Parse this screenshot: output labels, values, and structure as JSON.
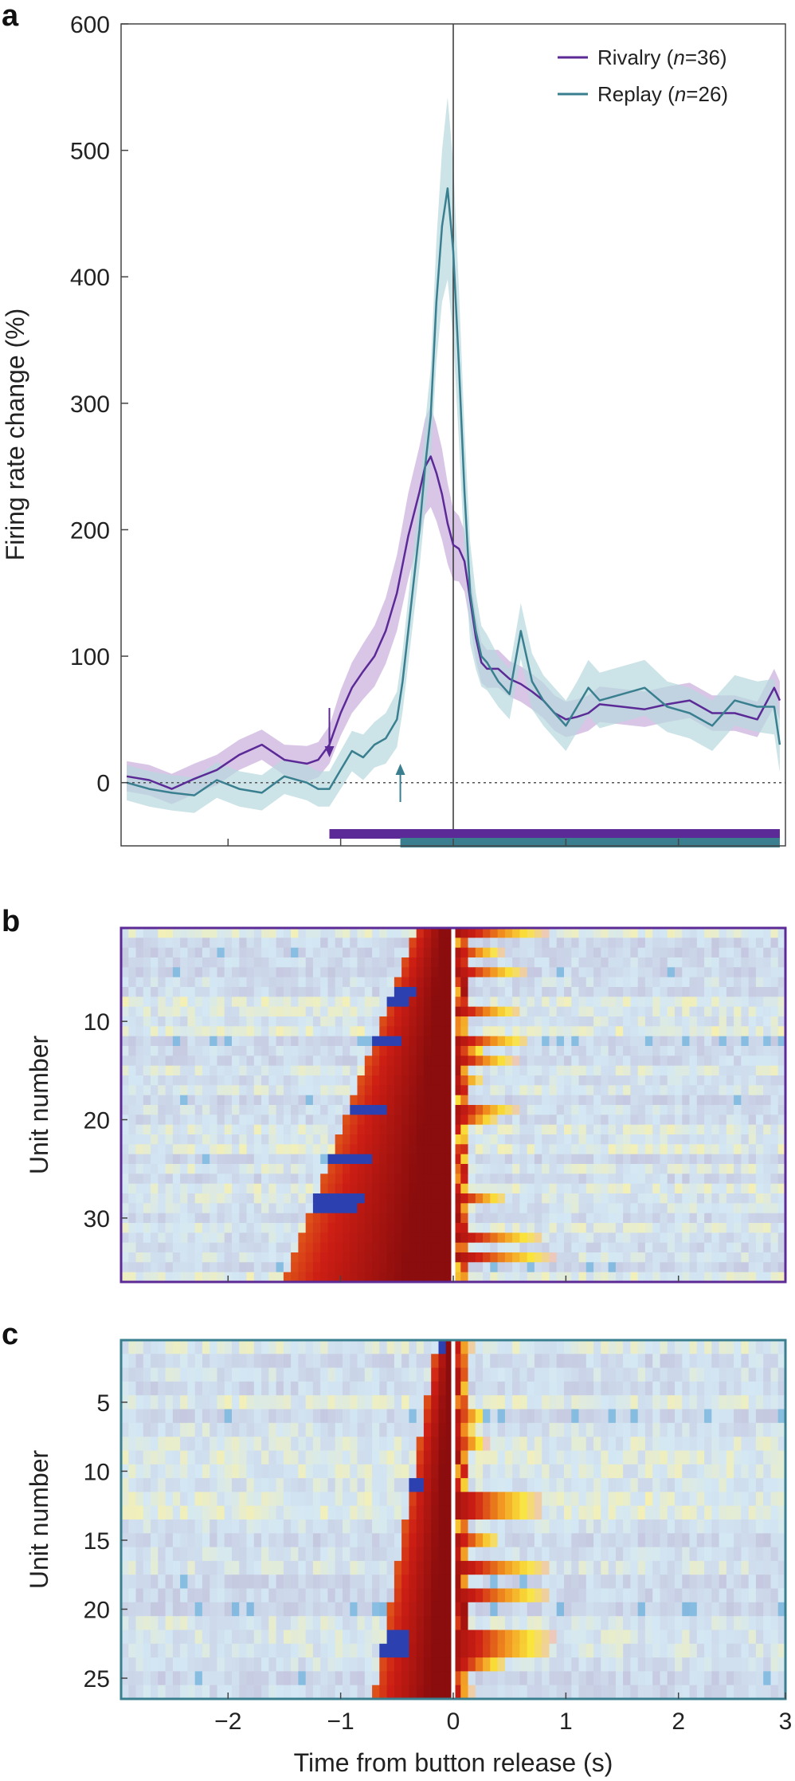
{
  "colors": {
    "rivalry": "#5b2a96",
    "replay": "#3a7f8f",
    "rivalry_band": "#c9aedd",
    "replay_band": "#b7d8dd",
    "heat_low": "#c5c8e0",
    "heat_high": "#8b0d0d"
  },
  "chart_data": [
    {
      "panel": "a",
      "type": "line",
      "xlabel": "",
      "ylabel": "Firing rate change (%)",
      "xlim": [
        -2.95,
        2.95
      ],
      "ylim": [
        -50,
        600
      ],
      "yticks": [
        "0",
        "100",
        "200",
        "300",
        "400",
        "500",
        "600"
      ],
      "ytick_values": [
        0,
        100,
        200,
        300,
        400,
        500,
        600
      ],
      "xtick_values": [
        -2,
        -1,
        0,
        1,
        2
      ],
      "series": [
        {
          "name": "Rivalry",
          "n_label": "36",
          "x": [
            -2.9,
            -2.7,
            -2.5,
            -2.3,
            -2.1,
            -1.9,
            -1.7,
            -1.5,
            -1.3,
            -1.2,
            -1.1,
            -1.0,
            -0.9,
            -0.8,
            -0.7,
            -0.6,
            -0.5,
            -0.4,
            -0.3,
            -0.25,
            -0.2,
            -0.15,
            -0.1,
            -0.05,
            0.0,
            0.05,
            0.1,
            0.15,
            0.2,
            0.25,
            0.3,
            0.4,
            0.5,
            0.6,
            0.7,
            0.8,
            0.9,
            1.0,
            1.1,
            1.2,
            1.3,
            1.5,
            1.7,
            1.9,
            2.1,
            2.3,
            2.5,
            2.7,
            2.85,
            2.9
          ],
          "values": [
            5,
            2,
            -5,
            3,
            10,
            22,
            30,
            18,
            15,
            18,
            30,
            55,
            75,
            88,
            100,
            120,
            150,
            195,
            230,
            250,
            258,
            245,
            228,
            205,
            188,
            185,
            175,
            145,
            115,
            95,
            90,
            90,
            82,
            78,
            72,
            65,
            55,
            50,
            52,
            55,
            62,
            60,
            58,
            62,
            65,
            55,
            55,
            50,
            75,
            65
          ],
          "error": [
            12,
            12,
            12,
            12,
            12,
            12,
            12,
            12,
            14,
            14,
            15,
            18,
            20,
            22,
            24,
            26,
            30,
            34,
            36,
            38,
            40,
            38,
            36,
            32,
            28,
            26,
            24,
            20,
            18,
            16,
            15,
            15,
            14,
            14,
            14,
            14,
            14,
            14,
            14,
            14,
            14,
            14,
            14,
            14,
            14,
            14,
            14,
            14,
            15,
            15
          ]
        },
        {
          "name": "Replay",
          "n_label": "26",
          "x": [
            -2.9,
            -2.7,
            -2.5,
            -2.3,
            -2.1,
            -1.9,
            -1.7,
            -1.5,
            -1.3,
            -1.2,
            -1.1,
            -1.0,
            -0.9,
            -0.8,
            -0.7,
            -0.6,
            -0.5,
            -0.45,
            -0.4,
            -0.35,
            -0.3,
            -0.25,
            -0.2,
            -0.15,
            -0.1,
            -0.05,
            0.0,
            0.05,
            0.1,
            0.15,
            0.2,
            0.25,
            0.3,
            0.4,
            0.5,
            0.6,
            0.7,
            0.8,
            0.9,
            1.0,
            1.1,
            1.2,
            1.3,
            1.5,
            1.7,
            1.9,
            2.1,
            2.3,
            2.5,
            2.7,
            2.85,
            2.9
          ],
          "values": [
            0,
            -5,
            -8,
            -10,
            2,
            -5,
            -8,
            5,
            0,
            -5,
            -5,
            10,
            25,
            20,
            30,
            35,
            50,
            80,
            120,
            160,
            200,
            250,
            290,
            380,
            440,
            470,
            420,
            330,
            230,
            150,
            120,
            100,
            95,
            80,
            70,
            120,
            80,
            65,
            55,
            45,
            60,
            75,
            65,
            70,
            75,
            60,
            55,
            45,
            65,
            60,
            60,
            30
          ],
          "error": [
            14,
            14,
            14,
            14,
            14,
            14,
            14,
            14,
            14,
            14,
            14,
            15,
            16,
            18,
            18,
            20,
            22,
            24,
            26,
            28,
            30,
            34,
            38,
            48,
            60,
            72,
            70,
            60,
            50,
            40,
            30,
            24,
            22,
            20,
            20,
            22,
            22,
            20,
            20,
            20,
            20,
            22,
            22,
            22,
            22,
            20,
            20,
            20,
            20,
            20,
            22,
            22
          ]
        }
      ],
      "annotations": [
        {
          "type": "arrow-down",
          "x": -1.1,
          "color": "rivalry"
        },
        {
          "type": "arrow-up",
          "x": -0.47,
          "color": "replay"
        }
      ],
      "significance_bars": [
        {
          "series": "Rivalry",
          "x_start": -1.1,
          "x_end": 2.9
        },
        {
          "series": "Replay",
          "x_start": -0.47,
          "x_end": 2.9
        }
      ],
      "reference_lines": [
        {
          "type": "vertical",
          "x": 0
        },
        {
          "type": "horizontal-dotted",
          "y": 0
        }
      ],
      "legend_position": "top-right"
    },
    {
      "panel": "b",
      "type": "heatmap",
      "ylabel": "Unit number",
      "n_units": 36,
      "yticks": [
        "10",
        "20",
        "30"
      ],
      "ytick_values": [
        10,
        20,
        30
      ],
      "xlim": [
        -2.95,
        2.95
      ],
      "frame_color": "rivalry",
      "onset_start_s": -1.5,
      "onset_end_s": -0.35,
      "description_sorted_by": "onset"
    },
    {
      "panel": "c",
      "type": "heatmap",
      "ylabel": "Unit number",
      "xlabel": "Time from button release (s)",
      "n_units": 26,
      "yticks": [
        "5",
        "10",
        "15",
        "20",
        "25"
      ],
      "ytick_values": [
        5,
        10,
        15,
        20,
        25
      ],
      "xticks": [
        "−2",
        "−1",
        "0",
        "1",
        "2",
        "3"
      ],
      "xtick_values": [
        -2,
        -1,
        0,
        1,
        2,
        3
      ],
      "xlim": [
        -2.95,
        2.95
      ],
      "frame_color": "replay",
      "onset_start_s": -0.7,
      "onset_end_s": -0.15
    }
  ],
  "panels": {
    "a": {
      "letter": "a"
    },
    "b": {
      "letter": "b"
    },
    "c": {
      "letter": "c"
    }
  },
  "legend": {
    "rivalry": {
      "label": "Rivalry (",
      "n": "n",
      "eq": "=36)"
    },
    "replay": {
      "label": "Replay (",
      "n": "n",
      "eq": "=26)"
    }
  }
}
